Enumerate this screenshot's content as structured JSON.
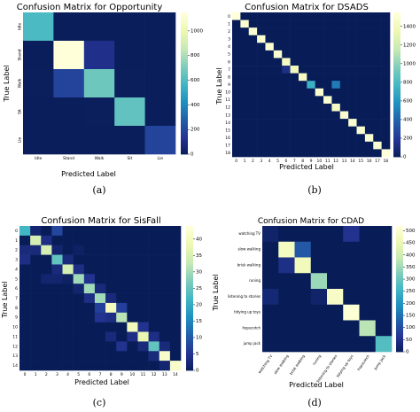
{
  "figure": {
    "panels": [
      {
        "caption": "(a)",
        "chart_data": {
          "type": "heatmap",
          "title": "Confusion Matrix for Opportunity",
          "xlabel": "Predicted Label",
          "ylabel": "True Label",
          "row_labels": [
            "Idle",
            "Stand",
            "Walk",
            "Sit",
            "Lie"
          ],
          "col_labels": [
            "Idle",
            "Stand",
            "Walk",
            "Sit",
            "Lie"
          ],
          "values": [
            [
              600,
              5,
              5,
              5,
              5
            ],
            [
              5,
              1150,
              120,
              5,
              5
            ],
            [
              10,
              200,
              680,
              10,
              5
            ],
            [
              5,
              5,
              10,
              650,
              5
            ],
            [
              5,
              5,
              5,
              5,
              200
            ]
          ],
          "colorbar_range": [
            0,
            1150
          ],
          "colorbar_ticks": [
            "0",
            "200",
            "400",
            "600",
            "800",
            "1000"
          ],
          "colorbar_tick_values": [
            0,
            200,
            400,
            600,
            800,
            1000
          ]
        }
      },
      {
        "caption": "(b)",
        "chart_data": {
          "type": "heatmap",
          "title": "Confusion Matrix for DSADS",
          "xlabel": "Predicted Label",
          "ylabel": "True Label",
          "row_labels": [
            "0",
            "1",
            "2",
            "3",
            "4",
            "5",
            "6",
            "7",
            "8",
            "9",
            "10",
            "11",
            "12",
            "13",
            "14",
            "15",
            "16",
            "17",
            "18"
          ],
          "col_labels": [
            "0",
            "1",
            "2",
            "3",
            "4",
            "5",
            "6",
            "7",
            "8",
            "9",
            "10",
            "11",
            "12",
            "13",
            "14",
            "15",
            "16",
            "17",
            "18"
          ],
          "values": [
            [
              1550,
              0,
              0,
              0,
              0,
              0,
              0,
              0,
              0,
              0,
              0,
              0,
              0,
              0,
              0,
              0,
              0,
              0,
              0
            ],
            [
              0,
              1500,
              0,
              0,
              0,
              0,
              0,
              0,
              0,
              0,
              0,
              0,
              0,
              0,
              0,
              0,
              0,
              0,
              0
            ],
            [
              0,
              0,
              1500,
              0,
              0,
              0,
              0,
              0,
              0,
              0,
              0,
              0,
              0,
              0,
              0,
              0,
              0,
              0,
              0
            ],
            [
              0,
              0,
              0,
              1500,
              0,
              0,
              0,
              0,
              0,
              0,
              0,
              0,
              0,
              0,
              0,
              0,
              0,
              0,
              0
            ],
            [
              0,
              0,
              0,
              0,
              1500,
              0,
              0,
              0,
              0,
              0,
              0,
              0,
              0,
              0,
              0,
              0,
              0,
              0,
              0
            ],
            [
              0,
              0,
              0,
              0,
              0,
              1500,
              0,
              0,
              0,
              0,
              0,
              0,
              0,
              0,
              0,
              0,
              0,
              0,
              0
            ],
            [
              0,
              0,
              0,
              0,
              0,
              0,
              1450,
              0,
              0,
              0,
              0,
              0,
              0,
              0,
              0,
              0,
              0,
              0,
              0
            ],
            [
              0,
              0,
              0,
              0,
              0,
              0,
              150,
              1400,
              0,
              0,
              0,
              0,
              0,
              0,
              0,
              0,
              0,
              0,
              0
            ],
            [
              0,
              0,
              0,
              0,
              0,
              0,
              0,
              0,
              1450,
              0,
              0,
              0,
              0,
              0,
              0,
              0,
              0,
              0,
              0
            ],
            [
              0,
              0,
              0,
              0,
              0,
              0,
              0,
              0,
              0,
              750,
              0,
              0,
              500,
              0,
              0,
              0,
              0,
              0,
              0
            ],
            [
              0,
              0,
              0,
              0,
              0,
              0,
              0,
              0,
              0,
              0,
              1500,
              0,
              0,
              0,
              0,
              0,
              0,
              0,
              0
            ],
            [
              0,
              0,
              0,
              0,
              0,
              0,
              0,
              0,
              0,
              0,
              0,
              1500,
              0,
              0,
              0,
              0,
              0,
              0,
              0
            ],
            [
              0,
              0,
              0,
              0,
              0,
              0,
              0,
              0,
              0,
              0,
              0,
              0,
              1450,
              0,
              0,
              0,
              0,
              0,
              0
            ],
            [
              0,
              0,
              0,
              0,
              0,
              0,
              0,
              0,
              0,
              0,
              0,
              0,
              0,
              1500,
              0,
              0,
              0,
              0,
              0
            ],
            [
              0,
              0,
              0,
              0,
              0,
              0,
              0,
              0,
              0,
              0,
              0,
              0,
              0,
              0,
              1500,
              0,
              0,
              0,
              0
            ],
            [
              0,
              0,
              0,
              0,
              0,
              0,
              0,
              0,
              0,
              0,
              0,
              0,
              0,
              0,
              0,
              1500,
              0,
              0,
              0
            ],
            [
              0,
              0,
              0,
              0,
              0,
              0,
              0,
              0,
              0,
              0,
              0,
              0,
              0,
              0,
              0,
              0,
              1500,
              0,
              0
            ],
            [
              0,
              0,
              0,
              0,
              0,
              0,
              0,
              0,
              0,
              0,
              0,
              0,
              0,
              0,
              0,
              0,
              0,
              1500,
              0
            ],
            [
              0,
              0,
              0,
              0,
              0,
              0,
              0,
              0,
              0,
              0,
              0,
              0,
              0,
              0,
              0,
              0,
              0,
              0,
              1550
            ]
          ],
          "colorbar_range": [
            0,
            1550
          ],
          "colorbar_ticks": [
            "0",
            "200",
            "400",
            "600",
            "800",
            "1000",
            "1200",
            "1400"
          ],
          "colorbar_tick_values": [
            0,
            200,
            400,
            600,
            800,
            1000,
            1200,
            1400
          ]
        }
      },
      {
        "caption": "(c)",
        "chart_data": {
          "type": "heatmap",
          "title": "Confusion Matrix for SisFall",
          "xlabel": "Predicted Label",
          "ylabel": "True Label",
          "row_labels": [
            "0",
            "1",
            "2",
            "3",
            "4",
            "5",
            "6",
            "7",
            "8",
            "9",
            "10",
            "11",
            "12",
            "13",
            "14"
          ],
          "col_labels": [
            "0",
            "1",
            "2",
            "3",
            "4",
            "5",
            "6",
            "7",
            "8",
            "9",
            "10",
            "11",
            "12",
            "13",
            "14"
          ],
          "values": [
            [
              22,
              2,
              0,
              8,
              0,
              0,
              0,
              0,
              0,
              0,
              0,
              0,
              0,
              0,
              0
            ],
            [
              0,
              35,
              4,
              0,
              0,
              0,
              0,
              0,
              0,
              0,
              0,
              0,
              0,
              0,
              0
            ],
            [
              3,
              3,
              35,
              2,
              0,
              1,
              0,
              0,
              0,
              0,
              0,
              0,
              0,
              0,
              0
            ],
            [
              4,
              0,
              0,
              25,
              3,
              0,
              0,
              0,
              0,
              0,
              0,
              0,
              0,
              0,
              0
            ],
            [
              0,
              0,
              0,
              3,
              35,
              4,
              0,
              0,
              0,
              0,
              0,
              0,
              0,
              0,
              0
            ],
            [
              0,
              0,
              2,
              2,
              1,
              30,
              5,
              0,
              0,
              0,
              0,
              0,
              0,
              0,
              0
            ],
            [
              0,
              0,
              0,
              0,
              0,
              2,
              30,
              3,
              0,
              0,
              0,
              0,
              0,
              0,
              0
            ],
            [
              0,
              0,
              0,
              0,
              0,
              0,
              4,
              30,
              3,
              0,
              0,
              0,
              0,
              0,
              0
            ],
            [
              0,
              0,
              0,
              0,
              0,
              0,
              0,
              7,
              40,
              7,
              0,
              0,
              0,
              0,
              0
            ],
            [
              0,
              0,
              0,
              0,
              0,
              0,
              0,
              5,
              4,
              32,
              0,
              0,
              0,
              0,
              0
            ],
            [
              0,
              0,
              0,
              0,
              0,
              0,
              0,
              0,
              0,
              0,
              40,
              5,
              0,
              0,
              0
            ],
            [
              0,
              0,
              0,
              0,
              0,
              0,
              0,
              0,
              3,
              0,
              4,
              38,
              4,
              0,
              0
            ],
            [
              0,
              0,
              0,
              0,
              0,
              0,
              0,
              0,
              0,
              5,
              0,
              3,
              25,
              3,
              0
            ],
            [
              0,
              0,
              0,
              0,
              0,
              0,
              0,
              0,
              0,
              0,
              0,
              0,
              3,
              42,
              0
            ],
            [
              0,
              0,
              0,
              0,
              0,
              0,
              0,
              0,
              0,
              0,
              0,
              0,
              0,
              2,
              42
            ]
          ],
          "colorbar_range": [
            0,
            44
          ],
          "colorbar_ticks": [
            "0",
            "5",
            "10",
            "15",
            "20",
            "25",
            "30",
            "35",
            "40"
          ],
          "colorbar_tick_values": [
            0,
            5,
            10,
            15,
            20,
            25,
            30,
            35,
            40
          ]
        }
      },
      {
        "caption": "(d)",
        "chart_data": {
          "type": "heatmap",
          "title": "Confusion Matrix for CDAD",
          "xlabel": "Predicted Label",
          "ylabel": "True Label",
          "row_labels": [
            "watching TV",
            "slow walking",
            "brisk walking",
            "runing",
            "listening to stories",
            "tidying up toys",
            "hopscotch",
            "jump jack"
          ],
          "col_labels": [
            "watching TV",
            "slow walking",
            "brisk walking",
            "runing",
            "listening to stories",
            "tidying up toys",
            "hopscotch",
            "jump jack"
          ],
          "values": [
            [
              20,
              0,
              0,
              0,
              0,
              60,
              0,
              0
            ],
            [
              0,
              480,
              120,
              0,
              0,
              0,
              0,
              0
            ],
            [
              0,
              50,
              470,
              0,
              0,
              0,
              0,
              0
            ],
            [
              0,
              0,
              0,
              350,
              0,
              0,
              0,
              0
            ],
            [
              30,
              0,
              0,
              20,
              490,
              0,
              0,
              0
            ],
            [
              0,
              0,
              0,
              0,
              0,
              510,
              0,
              0
            ],
            [
              0,
              0,
              0,
              0,
              0,
              0,
              380,
              0
            ],
            [
              0,
              0,
              0,
              0,
              0,
              0,
              0,
              280
            ]
          ],
          "colorbar_range": [
            0,
            520
          ],
          "colorbar_ticks": [
            "0",
            "50",
            "100",
            "150",
            "200",
            "250",
            "300",
            "350",
            "400",
            "450",
            "500"
          ],
          "colorbar_tick_values": [
            0,
            50,
            100,
            150,
            200,
            250,
            300,
            350,
            400,
            450,
            500
          ]
        }
      }
    ]
  }
}
